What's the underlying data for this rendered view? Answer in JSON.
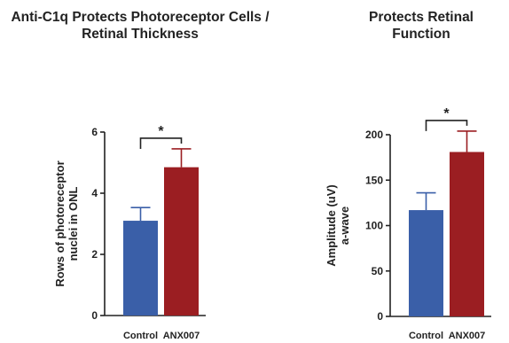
{
  "colors": {
    "control": "#3a5fa8",
    "treatment": "#9b1e22"
  },
  "chart_data": [
    {
      "type": "bar",
      "title": "Anti-C1q Protects Photoreceptor Cells / Retinal Thickness",
      "ylabel_lines": [
        "Rows of photoreceptor",
        "nuclei in ONL"
      ],
      "categories": [
        "Control",
        "ANX007"
      ],
      "values": [
        3.1,
        4.85
      ],
      "errors": [
        0.43,
        0.6
      ],
      "ylim": [
        0,
        6
      ],
      "yticks": [
        0,
        2,
        4,
        6
      ],
      "significance": "*"
    },
    {
      "type": "bar",
      "title": "Protects Retinal Function",
      "ylabel_lines": [
        "Amplitude (uV)",
        "a-wave"
      ],
      "categories": [
        "Control",
        "ANX007"
      ],
      "values": [
        117,
        181
      ],
      "errors": [
        19,
        23
      ],
      "ylim": [
        0,
        200
      ],
      "yticks": [
        0,
        50,
        100,
        150,
        200
      ],
      "significance": "*"
    }
  ]
}
